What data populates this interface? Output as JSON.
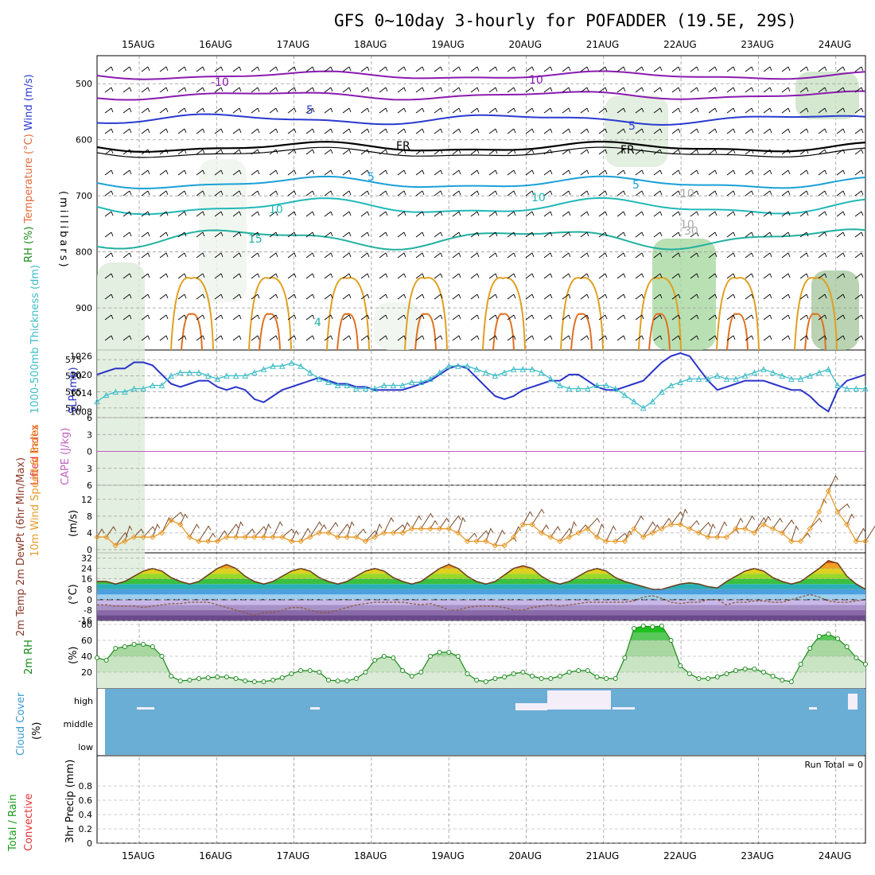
{
  "title": "GFS 0~10day 3-hourly for POFADDER (19.5E, 29S)",
  "dates": [
    "15AUG",
    "16AUG",
    "17AUG",
    "18AUG",
    "19AUG",
    "20AUG",
    "21AUG",
    "22AUG",
    "23AUG",
    "24AUG"
  ],
  "colors": {
    "grid": "#999999",
    "sst": "#2a33c8",
    "thick": "#3dbdc8",
    "wind": "#e89a2a",
    "temp": "#6a3a1a",
    "rh": "#1a8a1a",
    "cloud": "#6aaed6",
    "lifted": "#e83030"
  },
  "chart_data": [
    {
      "type": "line",
      "panel": "upper-air",
      "title": "GFS 0~10day 3-hourly for POFADDER (19.5E, 29S)",
      "ylabel_parts": [
        "RH (%)",
        "Temperature (°C)",
        "Wind (m/s)"
      ],
      "ylabel_right": "(millibars)",
      "yticks": [
        500,
        600,
        700,
        800,
        900
      ],
      "ylim": [
        450,
        975
      ],
      "contour_labels": [
        "-10",
        "10",
        "5",
        "5",
        "FR",
        "FR",
        "5",
        "5",
        "10",
        "10",
        "15",
        "10",
        "10",
        "30",
        "4"
      ]
    },
    {
      "type": "line",
      "panel": "slp-thickness",
      "ylabel_left": "1000-500mb Thickness (dm)",
      "ylabel_right": "SLP (mb)",
      "yticks_left": [
        575,
        570,
        565,
        560
      ],
      "yticks_right": [
        1026,
        1020,
        1014,
        1008
      ],
      "series": [
        {
          "name": "SLP",
          "values": [
            1020,
            1021,
            1022,
            1022,
            1024,
            1024,
            1023,
            1020,
            1017,
            1016,
            1017,
            1018,
            1018,
            1016,
            1015,
            1016,
            1015,
            1012,
            1011,
            1013,
            1015,
            1016,
            1017,
            1018,
            1019,
            1018,
            1017,
            1017,
            1016,
            1016,
            1015,
            1015,
            1015,
            1015,
            1016,
            1017,
            1018,
            1020,
            1022,
            1023,
            1022,
            1019,
            1016,
            1013,
            1012,
            1013,
            1015,
            1016,
            1017,
            1018,
            1018,
            1020,
            1020,
            1018,
            1016,
            1015,
            1015,
            1016,
            1017,
            1018,
            1021,
            1024,
            1026,
            1027,
            1026,
            1022,
            1018,
            1015,
            1016,
            1017,
            1018,
            1018,
            1018,
            1017,
            1016,
            1015,
            1015,
            1013,
            1010,
            1008,
            1015,
            1018,
            1019,
            1020
          ]
        },
        {
          "name": "Thickness",
          "values": [
            562,
            564,
            565,
            565,
            566,
            566,
            567,
            567,
            570,
            571,
            571,
            571,
            570,
            569,
            570,
            570,
            570,
            571,
            572,
            573,
            573,
            574,
            573,
            571,
            569,
            568,
            567,
            567,
            566,
            566,
            566,
            567,
            567,
            567,
            568,
            568,
            569,
            571,
            573,
            573,
            573,
            572,
            571,
            570,
            571,
            572,
            572,
            572,
            571,
            569,
            567,
            566,
            566,
            566,
            567,
            567,
            566,
            564,
            562,
            560,
            562,
            565,
            567,
            568,
            569,
            569,
            569,
            570,
            569,
            569,
            570,
            571,
            572,
            571,
            570,
            569,
            569,
            570,
            571,
            572,
            567,
            566,
            566,
            566
          ]
        }
      ]
    },
    {
      "type": "line",
      "panel": "lifted-cape",
      "ylabel_left": "Lifted Index",
      "ylabel_right": "CAPE (J/kg)",
      "yticks": [
        -6,
        -3,
        0,
        3,
        6
      ],
      "tick_labels": [
        "6",
        "3",
        "0",
        "3",
        "6"
      ],
      "ylim": [
        -6,
        6
      ],
      "series": [
        {
          "name": "CAPE",
          "values": [
            0,
            0,
            0,
            0,
            0,
            0,
            0,
            0,
            0,
            0,
            0,
            0,
            0,
            0,
            0,
            0,
            0,
            0,
            0,
            0,
            0,
            0,
            0,
            0,
            0,
            0,
            0,
            0,
            0,
            0,
            0,
            0,
            0,
            0,
            0,
            0,
            0,
            0,
            0,
            0,
            0,
            0,
            0,
            0,
            0,
            0,
            0,
            0,
            0,
            0,
            0,
            0,
            0,
            0,
            0,
            0,
            0,
            0,
            0,
            0,
            0,
            0,
            0,
            0,
            0,
            0,
            0,
            0,
            0,
            0,
            0,
            0,
            0,
            0,
            0,
            0,
            0,
            0,
            0,
            0,
            0,
            0,
            0,
            0
          ]
        }
      ]
    },
    {
      "type": "line",
      "panel": "wind10m",
      "ylabel_left": "10m Wind Speed & Barbs",
      "ylabel_right": "(m/s)",
      "yticks": [
        0,
        4,
        8,
        12
      ],
      "ylim": [
        0,
        15
      ],
      "series": [
        {
          "name": "Wind Speed",
          "values": [
            3,
            3,
            1,
            2,
            3,
            3,
            3,
            4,
            7,
            6,
            3,
            2,
            2,
            2,
            3,
            3,
            3,
            3,
            3,
            3,
            3,
            2,
            2,
            3,
            4,
            4,
            3,
            3,
            3,
            2,
            3,
            4,
            4,
            4,
            5,
            5,
            5,
            5,
            5,
            4,
            2,
            2,
            2,
            1,
            1,
            3,
            6,
            6,
            4,
            3,
            2,
            3,
            4,
            5,
            3,
            2,
            2,
            2,
            5,
            3,
            4,
            5,
            6,
            6,
            5,
            4,
            3,
            3,
            3,
            5,
            5,
            4,
            6,
            5,
            4,
            2,
            2,
            5,
            9,
            14,
            9,
            6,
            2,
            2
          ]
        }
      ]
    },
    {
      "type": "area",
      "panel": "temperature",
      "ylabel_left": "2m Temp 2m DewPt (6hr Min/Max)",
      "ylabel_right": "(°C)",
      "yticks": [
        32,
        24,
        16,
        8,
        0,
        -8,
        -16
      ],
      "ylim": [
        -16,
        36
      ],
      "series": [
        {
          "name": "Temp",
          "values": [
            14,
            14,
            12,
            14,
            18,
            22,
            24,
            22,
            17,
            14,
            12,
            14,
            19,
            24,
            27,
            24,
            18,
            14,
            12,
            14,
            18,
            22,
            24,
            22,
            17,
            14,
            12,
            14,
            18,
            22,
            24,
            22,
            17,
            14,
            12,
            14,
            19,
            24,
            27,
            24,
            18,
            14,
            12,
            14,
            19,
            24,
            26,
            24,
            18,
            14,
            12,
            14,
            18,
            22,
            24,
            22,
            17,
            14,
            12,
            10,
            8,
            8,
            10,
            12,
            13,
            12,
            10,
            9,
            14,
            18,
            22,
            24,
            22,
            17,
            14,
            12,
            14,
            19,
            24,
            30,
            28,
            18,
            12,
            8
          ]
        },
        {
          "name": "DewPt",
          "values": [
            -4,
            -4,
            -5,
            -5,
            -5,
            -6,
            -5,
            -4,
            -3,
            -3,
            -2,
            -2,
            -2,
            -4,
            -6,
            -8,
            -10,
            -12,
            -10,
            -10,
            -8,
            -6,
            -6,
            -8,
            -10,
            -10,
            -8,
            -6,
            -4,
            -3,
            -2,
            -2,
            -2,
            -2,
            -3,
            -4,
            -3,
            -5,
            -8,
            -8,
            -6,
            -5,
            -5,
            -5,
            -6,
            -8,
            -8,
            -6,
            -5,
            -4,
            -5,
            -4,
            -3,
            -2,
            -2,
            -2,
            -2,
            -2,
            -1,
            2,
            3,
            1,
            -2,
            -3,
            -2,
            -2,
            0,
            0,
            -4,
            -2,
            -2,
            -1,
            -1,
            -2,
            -2,
            0,
            2,
            4,
            2,
            -1,
            -2,
            -2,
            -1,
            0
          ]
        }
      ]
    },
    {
      "type": "area",
      "panel": "rh2m",
      "ylabel_left": "2m RH",
      "ylabel_right": "(%)",
      "yticks": [
        20,
        40,
        60,
        80
      ],
      "ylim": [
        0,
        80
      ],
      "series": [
        {
          "name": "RH",
          "values": [
            38,
            35,
            50,
            52,
            55,
            55,
            52,
            40,
            15,
            9,
            10,
            12,
            13,
            14,
            14,
            12,
            9,
            8,
            8,
            10,
            13,
            18,
            22,
            22,
            20,
            10,
            9,
            9,
            12,
            20,
            35,
            40,
            38,
            22,
            15,
            20,
            40,
            45,
            45,
            40,
            18,
            10,
            8,
            12,
            14,
            18,
            20,
            15,
            12,
            12,
            15,
            20,
            22,
            22,
            14,
            12,
            12,
            38,
            75,
            78,
            77,
            78,
            60,
            28,
            18,
            12,
            12,
            14,
            18,
            22,
            24,
            24,
            20,
            15,
            10,
            8,
            30,
            50,
            65,
            68,
            62,
            52,
            38,
            30
          ]
        }
      ]
    },
    {
      "type": "bar",
      "panel": "cloud",
      "ylabel_left": "Cloud Cover",
      "ylabel_right": "(%)",
      "yticks": [
        "high",
        "middle",
        "low"
      ],
      "series": [
        {
          "name": "high cloud",
          "values": [
            0,
            0,
            0,
            0,
            0,
            0,
            0,
            0,
            0,
            0,
            0,
            0,
            0,
            0,
            0,
            0,
            0,
            0,
            0,
            0,
            0,
            0,
            0,
            0,
            0,
            0,
            0,
            0,
            0,
            0,
            0,
            0,
            0,
            0,
            0,
            0,
            0,
            0,
            0,
            0,
            0,
            0,
            0,
            0,
            0,
            0,
            0,
            0,
            0,
            0,
            0,
            0,
            0,
            0,
            0,
            0,
            0,
            0,
            0,
            0,
            0,
            0,
            0,
            0,
            0,
            0,
            0,
            0,
            0,
            0,
            0,
            0,
            0,
            0,
            0,
            0,
            0,
            0,
            0,
            0,
            0,
            0,
            0,
            0
          ]
        }
      ]
    },
    {
      "type": "bar",
      "panel": "precip",
      "ylabel_left": "Total / Rain",
      "ylabel_left2": "Convective",
      "ylabel_right": "3hr Precip (mm)",
      "yticks": [
        0,
        0.2,
        0.4,
        0.6,
        0.8
      ],
      "ylim": [
        0,
        1.0
      ],
      "annotation": "Run Total = 0",
      "series": [
        {
          "name": "Precip",
          "values": [
            0,
            0,
            0,
            0,
            0,
            0,
            0,
            0,
            0,
            0,
            0,
            0,
            0,
            0,
            0,
            0,
            0,
            0,
            0,
            0,
            0,
            0,
            0,
            0,
            0,
            0,
            0,
            0,
            0,
            0,
            0,
            0,
            0,
            0,
            0,
            0,
            0,
            0,
            0,
            0,
            0,
            0,
            0,
            0,
            0,
            0,
            0,
            0,
            0,
            0,
            0,
            0,
            0,
            0,
            0,
            0,
            0,
            0,
            0,
            0,
            0,
            0,
            0,
            0,
            0,
            0,
            0,
            0,
            0,
            0,
            0,
            0,
            0,
            0,
            0,
            0,
            0,
            0,
            0,
            0,
            0,
            0,
            0,
            0
          ]
        }
      ]
    }
  ]
}
